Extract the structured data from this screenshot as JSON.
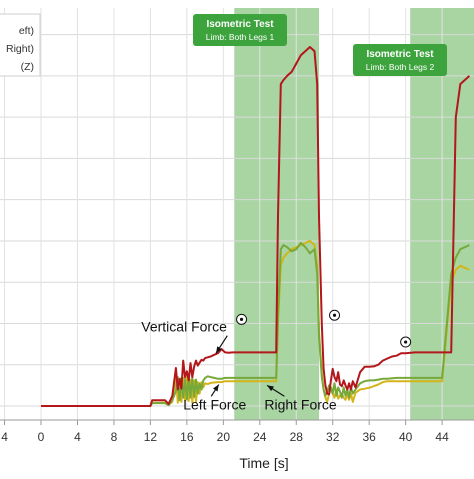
{
  "chart_data": {
    "type": "line",
    "xlabel": "Time [s]",
    "xlim": [
      -4.5,
      47.5
    ],
    "ylim": [
      0,
      950
    ],
    "x_ticks": [
      "4",
      "0",
      "4",
      "8",
      "12",
      "16",
      "20",
      "24",
      "28",
      "32",
      "36",
      "40",
      "44"
    ],
    "x_tick_values": [
      -4,
      0,
      4,
      8,
      12,
      16,
      20,
      24,
      28,
      32,
      36,
      40,
      44
    ],
    "y_gridlines": [
      0,
      100,
      200,
      300,
      400,
      500,
      600,
      700,
      800,
      900
    ],
    "grid": true,
    "legend": {
      "placement": "top-left",
      "entries": [
        "eft)",
        "Right)",
        "(Z)"
      ],
      "colors": [
        "#3a5cb0",
        "#c7ac14",
        "#7a8f3a"
      ]
    },
    "shaded_regions": [
      {
        "x0": 21.2,
        "x1": 30.5,
        "label": "Isometric Test",
        "sublabel": "Limb: Both Legs 1"
      },
      {
        "x0": 40.5,
        "x1": 47.5,
        "label": "Isometric Test",
        "sublabel": "Limb: Both Legs 2"
      }
    ],
    "markers": [
      {
        "x": 22.0,
        "y": 210
      },
      {
        "x": 32.2,
        "y": 220
      },
      {
        "x": 40.0,
        "y": 155
      }
    ],
    "annotations": [
      {
        "text": "Vertical Force",
        "x": 11.0,
        "y": 180,
        "arrow_to": [
          19.2,
          128
        ]
      },
      {
        "text": "Left Force",
        "x": 15.6,
        "y": -8,
        "arrow_to": [
          19.5,
          52
        ]
      },
      {
        "text": "Right Force",
        "x": 24.5,
        "y": -8,
        "arrow_to": [
          24.8,
          50
        ]
      }
    ],
    "series": [
      {
        "name": "Vertical Force",
        "color": "#b3161b",
        "x": [
          0,
          12,
          12.2,
          13.6,
          14,
          14.4,
          14.8,
          15.0,
          15.2,
          15.4,
          15.6,
          15.8,
          16.0,
          16.2,
          16.4,
          16.6,
          16.8,
          17.0,
          17.2,
          17.4,
          17.6,
          17.8,
          18.0,
          18.3,
          18.6,
          19.0,
          19.4,
          19.8,
          20.2,
          20.6,
          21,
          22,
          23,
          24,
          25.8,
          26.0,
          26.3,
          26.6,
          27,
          27.5,
          28,
          28.5,
          29,
          29.5,
          30.0,
          30.3,
          30.5,
          30.8,
          31.0,
          31.2,
          31.4,
          31.6,
          31.8,
          32.0,
          32.2,
          32.4,
          32.6,
          32.8,
          33.0,
          33.2,
          33.4,
          33.6,
          33.8,
          34.0,
          34.2,
          34.5,
          35.0,
          35.5,
          36,
          36.5,
          37,
          37.5,
          38,
          38.5,
          39,
          39.5,
          40,
          41,
          42,
          43,
          44,
          45.0,
          45.5,
          46,
          47
        ],
        "y": [
          0,
          0,
          14,
          14,
          5,
          24,
          92,
          40,
          66,
          42,
          110,
          70,
          84,
          62,
          104,
          70,
          96,
          110,
          98,
          105,
          112,
          110,
          116,
          118,
          120,
          124,
          128,
          138,
          130,
          129,
          130,
          130,
          130,
          130,
          130,
          460,
          780,
          790,
          800,
          810,
          830,
          850,
          860,
          870,
          860,
          780,
          460,
          200,
          90,
          50,
          30,
          28,
          62,
          90,
          70,
          60,
          82,
          52,
          48,
          62,
          50,
          40,
          55,
          40,
          60,
          45,
          82,
          95,
          95,
          96,
          100,
          110,
          115,
          120,
          122,
          128,
          128,
          130,
          130,
          130,
          130,
          130,
          700,
          780,
          800
        ]
      },
      {
        "name": "Left Force",
        "color": "#d4b419",
        "x": [
          0,
          12,
          12.2,
          13.6,
          14,
          14.4,
          14.8,
          15.0,
          15.2,
          15.4,
          15.6,
          15.8,
          16.0,
          16.2,
          16.4,
          16.6,
          16.8,
          17.0,
          17.2,
          17.4,
          17.6,
          17.8,
          18.0,
          18.3,
          18.6,
          19.0,
          19.4,
          19.8,
          20.2,
          21,
          22,
          23,
          24,
          25.8,
          26.0,
          26.3,
          26.6,
          27,
          27.5,
          28,
          28.5,
          29,
          29.5,
          30.0,
          30.3,
          30.5,
          30.8,
          31.0,
          31.2,
          31.4,
          31.6,
          31.8,
          32.0,
          32.2,
          32.4,
          32.6,
          32.8,
          33.0,
          33.2,
          33.4,
          33.6,
          33.8,
          34.0,
          34.2,
          34.5,
          35.0,
          35.5,
          36,
          36.5,
          37,
          37.5,
          38,
          39,
          40,
          41,
          42,
          43,
          44,
          45.0,
          45.5,
          46,
          47
        ],
        "y": [
          0,
          0,
          8,
          8,
          3,
          10,
          74,
          8,
          62,
          10,
          68,
          14,
          70,
          12,
          64,
          8,
          62,
          10,
          58,
          30,
          58,
          45,
          55,
          53,
          56,
          57,
          58,
          58,
          60,
          60,
          60,
          60,
          60,
          60,
          200,
          340,
          360,
          370,
          380,
          385,
          390,
          395,
          400,
          390,
          340,
          180,
          80,
          40,
          20,
          10,
          30,
          40,
          30,
          20,
          40,
          18,
          25,
          30,
          20,
          15,
          30,
          15,
          30,
          10,
          32,
          40,
          42,
          44,
          48,
          52,
          58,
          60,
          60,
          60,
          60,
          60,
          60,
          60,
          300,
          330,
          340,
          330
        ]
      },
      {
        "name": "Right Force",
        "color": "#77a83a",
        "x": [
          0,
          12,
          12.2,
          13.6,
          14,
          14.4,
          14.8,
          15.0,
          15.2,
          15.4,
          15.6,
          15.8,
          16.0,
          16.2,
          16.4,
          16.6,
          16.8,
          17.0,
          17.2,
          17.4,
          17.6,
          17.8,
          18.0,
          18.3,
          18.6,
          19.0,
          19.4,
          19.8,
          20.2,
          21,
          22,
          23,
          24,
          25.8,
          26.0,
          26.3,
          26.6,
          27,
          27.5,
          28,
          28.5,
          29,
          29.5,
          30.0,
          30.3,
          30.5,
          30.8,
          31.0,
          31.2,
          31.4,
          31.6,
          31.8,
          32.0,
          32.2,
          32.4,
          32.6,
          32.8,
          33.0,
          33.2,
          33.4,
          33.6,
          33.8,
          34.0,
          34.2,
          34.5,
          35.0,
          35.5,
          36,
          36.5,
          37,
          37.5,
          38,
          39,
          40,
          41,
          42,
          43,
          44,
          45.0,
          45.5,
          46,
          47
        ],
        "y": [
          0,
          0,
          7,
          7,
          2,
          14,
          36,
          70,
          14,
          68,
          20,
          66,
          16,
          70,
          20,
          68,
          22,
          64,
          30,
          55,
          40,
          62,
          68,
          72,
          70,
          68,
          66,
          66,
          68,
          68,
          68,
          68,
          68,
          68,
          220,
          380,
          390,
          385,
          375,
          380,
          395,
          385,
          370,
          380,
          320,
          170,
          70,
          40,
          25,
          35,
          50,
          45,
          30,
          55,
          25,
          45,
          35,
          20,
          45,
          25,
          40,
          20,
          45,
          30,
          40,
          55,
          60,
          62,
          62,
          64,
          66,
          66,
          68,
          68,
          68,
          68,
          68,
          68,
          320,
          360,
          380,
          390
        ]
      }
    ]
  }
}
